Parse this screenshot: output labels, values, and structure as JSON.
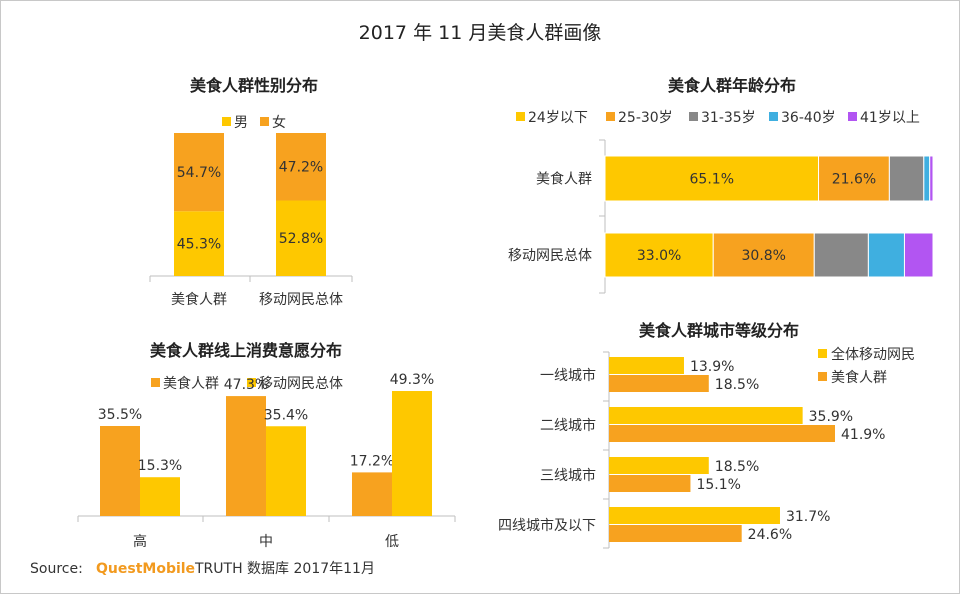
{
  "title": "2017 年 11 月美食人群画像",
  "colors": {
    "yellow": "#fec800",
    "orange": "#f7a21f",
    "gray": "#888888",
    "blue": "#3fafe0",
    "purple": "#b255f2",
    "axis": "#bfbfbf",
    "brand": "#f29a1f"
  },
  "source": {
    "label": "Source:",
    "brand": "QuestMobile",
    "rest": "TRUTH 数据库 2017年11月"
  },
  "chart_data": [
    {
      "type": "bar",
      "stacked": true,
      "title": "美食人群性别分布",
      "categories": [
        "美食人群",
        "移动网民总体"
      ],
      "series": [
        {
          "name": "男",
          "values": [
            45.3,
            52.8
          ],
          "labels": [
            "45.3%",
            "52.8%"
          ],
          "color": "#fec800"
        },
        {
          "name": "女",
          "values": [
            54.7,
            47.2
          ],
          "labels": [
            "54.7%",
            "47.2%"
          ],
          "color": "#f7a21f"
        }
      ],
      "legend": "top",
      "ylim": [
        0,
        100
      ]
    },
    {
      "type": "bar",
      "orientation": "horizontal",
      "stacked": true,
      "title": "美食人群年龄分布",
      "categories": [
        "美食人群",
        "移动网民总体"
      ],
      "series": [
        {
          "name": "24岁以下",
          "values": [
            65.1,
            33.0
          ],
          "labels": [
            "65.1%",
            "33.0%"
          ],
          "color": "#fec800"
        },
        {
          "name": "25-30岁",
          "values": [
            21.6,
            30.8
          ],
          "labels": [
            "21.6%",
            "30.8%"
          ],
          "color": "#f7a21f"
        },
        {
          "name": "31-35岁",
          "values": [
            10.5,
            16.5
          ],
          "labels": [
            "",
            ""
          ],
          "color": "#888888"
        },
        {
          "name": "36-40岁",
          "values": [
            1.8,
            11.0
          ],
          "labels": [
            "",
            ""
          ],
          "color": "#3fafe0"
        },
        {
          "name": "41岁以上",
          "values": [
            1.0,
            8.7
          ],
          "labels": [
            "",
            ""
          ],
          "color": "#b255f2"
        }
      ],
      "legend": "top",
      "xlim": [
        0,
        100
      ]
    },
    {
      "type": "bar",
      "title": "美食人群线上消费意愿分布",
      "categories": [
        "高",
        "中",
        "低"
      ],
      "series": [
        {
          "name": "美食人群",
          "values": [
            35.5,
            47.3,
            17.2
          ],
          "labels": [
            "35.5%",
            "47.3%",
            "17.2%"
          ],
          "color": "#f7a21f"
        },
        {
          "name": "移动网民总体",
          "values": [
            15.3,
            35.4,
            49.3
          ],
          "labels": [
            "15.3%",
            "35.4%",
            "49.3%"
          ],
          "color": "#fec800"
        }
      ],
      "legend": "top",
      "ylim": [
        0,
        55
      ]
    },
    {
      "type": "bar",
      "orientation": "horizontal",
      "title": "美食人群城市等级分布",
      "categories": [
        "一线城市",
        "二线城市",
        "三线城市",
        "四线城市及以下"
      ],
      "series": [
        {
          "name": "全体移动网民",
          "values": [
            13.9,
            35.9,
            18.5,
            31.7
          ],
          "labels": [
            "13.9%",
            "35.9%",
            "18.5%",
            "31.7%"
          ],
          "color": "#fec800"
        },
        {
          "name": "美食人群",
          "values": [
            18.5,
            41.9,
            15.1,
            24.6
          ],
          "labels": [
            "18.5%",
            "41.9%",
            "15.1%",
            "24.6%"
          ],
          "color": "#f7a21f"
        }
      ],
      "legend": "top-right",
      "xlim": [
        0,
        45
      ]
    }
  ]
}
